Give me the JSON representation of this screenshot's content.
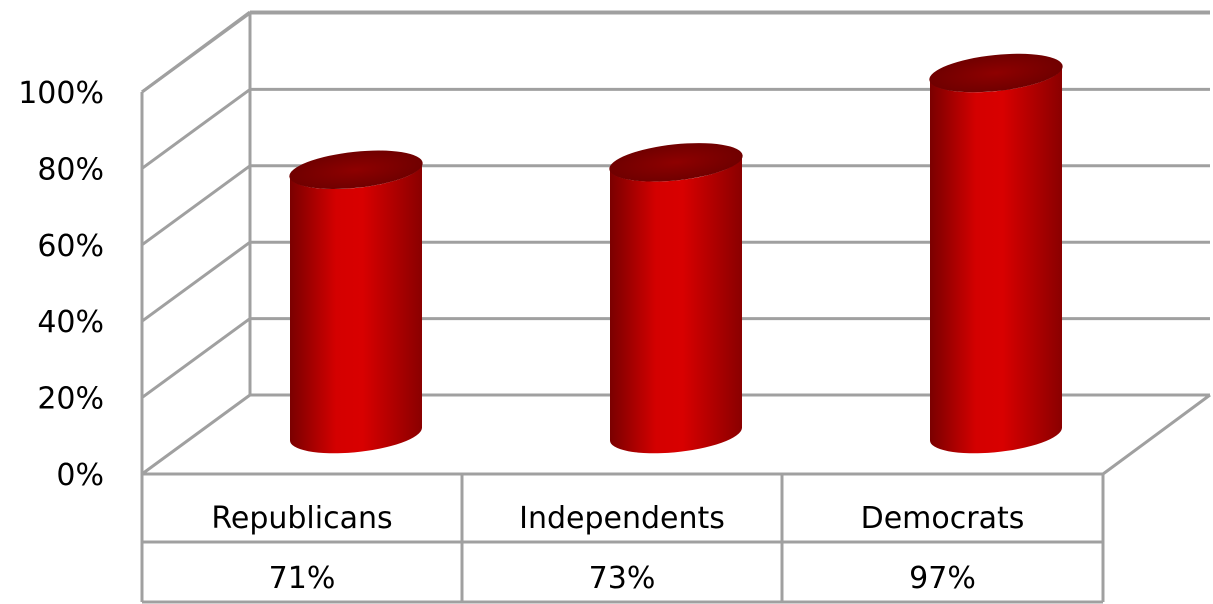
{
  "chart_data": {
    "type": "bar",
    "style": "3d-cylinder",
    "categories": [
      "Republicans",
      "Independents",
      "Democrats"
    ],
    "values": [
      71,
      73,
      97
    ],
    "value_labels": [
      "71%",
      "73%",
      "97%"
    ],
    "ylim": [
      0,
      100
    ],
    "y_ticks": [
      0,
      20,
      40,
      60,
      80,
      100
    ],
    "y_tick_labels": [
      "0%",
      "20%",
      "40%",
      "60%",
      "80%",
      "100%"
    ],
    "grid": true,
    "data_table": true,
    "colors": {
      "bar": "#cc0000",
      "bar_dark": "#7a0000",
      "grid": "#a0a0a0",
      "axis_text": "#000000"
    }
  }
}
